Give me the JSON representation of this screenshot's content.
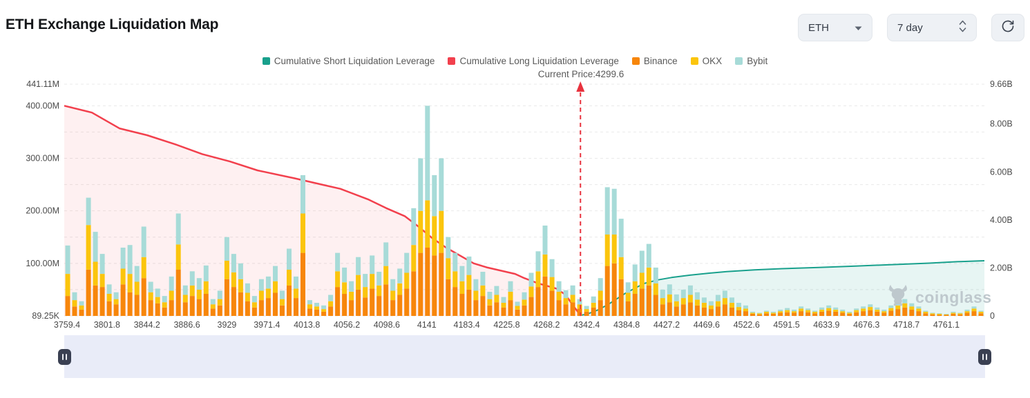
{
  "header": {
    "title": "ETH Exchange Liquidation Map",
    "coin_select": {
      "value": "ETH"
    },
    "period_select": {
      "value": "7 day"
    }
  },
  "legend": {
    "items": [
      {
        "label": "Cumulative Short Liquidation Leverage",
        "color": "#18A08C"
      },
      {
        "label": "Cumulative Long Liquidation Leverage",
        "color": "#F2404D"
      },
      {
        "label": "Binance",
        "color": "#F7860B"
      },
      {
        "label": "OKX",
        "color": "#FBC50D"
      },
      {
        "label": "Bybit",
        "color": "#A7DBD8"
      }
    ]
  },
  "annotation": {
    "current_price_label": "Current Price:4299.6",
    "current_price": 4299.6,
    "price_line_fraction": 0.561,
    "line_color": "#E8323E"
  },
  "watermark": {
    "text": "coinglass"
  },
  "chart_data": {
    "type": "bar+line",
    "title": "ETH Exchange Liquidation Map",
    "grid": true,
    "legend_position": "top",
    "x_tick_labels": [
      "3759.4",
      "3801.8",
      "3844.2",
      "3886.6",
      "3929",
      "3971.4",
      "4013.8",
      "4056.2",
      "4098.6",
      "4141",
      "4183.4",
      "4225.8",
      "4268.2",
      "4342.4",
      "4384.8",
      "4427.2",
      "4469.6",
      "4522.6",
      "4591.5",
      "4633.9",
      "4676.3",
      "4718.7",
      "4761.1"
    ],
    "left_axis": {
      "tick_labels": [
        "441.11M",
        "400.00M",
        "300.00M",
        "200.00M",
        "100.00M",
        "89.25K"
      ],
      "tick_values_m": [
        441.11,
        400,
        300,
        200,
        100,
        0.08925
      ],
      "max_m": 441.11,
      "gridline_step_m": 50
    },
    "right_axis": {
      "tick_labels": [
        "9.66B",
        "8.00B",
        "6.00B",
        "4.00B",
        "2.00B",
        "0"
      ],
      "tick_values_b": [
        9.66,
        8,
        6,
        4,
        2,
        0
      ],
      "max_b": 9.66
    },
    "bar_series": [
      {
        "name": "Binance",
        "color": "#F7860B"
      },
      {
        "name": "OKX",
        "color": "#FBC50D"
      },
      {
        "name": "Bybit",
        "color": "#A7DBD8"
      }
    ],
    "bars_unit": "millions",
    "bars": [
      [
        38,
        42,
        54
      ],
      [
        18,
        12,
        15
      ],
      [
        12,
        8,
        8
      ],
      [
        88,
        85,
        52
      ],
      [
        58,
        45,
        57
      ],
      [
        55,
        25,
        38
      ],
      [
        28,
        14,
        18
      ],
      [
        22,
        10,
        13
      ],
      [
        60,
        30,
        40
      ],
      [
        45,
        35,
        55
      ],
      [
        40,
        25,
        30
      ],
      [
        72,
        40,
        58
      ],
      [
        30,
        15,
        20
      ],
      [
        24,
        12,
        16
      ],
      [
        16,
        10,
        12
      ],
      [
        30,
        18,
        27
      ],
      [
        88,
        48,
        59
      ],
      [
        26,
        14,
        18
      ],
      [
        38,
        20,
        27
      ],
      [
        32,
        18,
        22
      ],
      [
        42,
        24,
        30
      ],
      [
        14,
        8,
        10
      ],
      [
        20,
        12,
        16
      ],
      [
        70,
        35,
        45
      ],
      [
        55,
        28,
        35
      ],
      [
        45,
        25,
        30
      ],
      [
        28,
        16,
        18
      ],
      [
        16,
        10,
        12
      ],
      [
        30,
        18,
        22
      ],
      [
        34,
        18,
        23
      ],
      [
        44,
        22,
        29
      ],
      [
        20,
        12,
        16
      ],
      [
        58,
        30,
        40
      ],
      [
        34,
        18,
        23
      ],
      [
        120,
        75,
        73
      ],
      [
        14,
        8,
        8
      ],
      [
        12,
        6,
        7
      ],
      [
        8,
        5,
        7
      ],
      [
        18,
        10,
        12
      ],
      [
        55,
        30,
        35
      ],
      [
        42,
        22,
        28
      ],
      [
        30,
        16,
        20
      ],
      [
        50,
        28,
        34
      ],
      [
        35,
        20,
        25
      ],
      [
        52,
        28,
        35
      ],
      [
        38,
        20,
        26
      ],
      [
        60,
        35,
        45
      ],
      [
        30,
        18,
        22
      ],
      [
        40,
        22,
        28
      ],
      [
        52,
        30,
        38
      ],
      [
        85,
        50,
        70
      ],
      [
        120,
        80,
        100
      ],
      [
        130,
        90,
        180
      ],
      [
        115,
        75,
        78
      ],
      [
        120,
        80,
        100
      ],
      [
        70,
        40,
        40
      ],
      [
        55,
        30,
        35
      ],
      [
        42,
        24,
        29
      ],
      [
        50,
        28,
        35
      ],
      [
        30,
        18,
        22
      ],
      [
        38,
        20,
        26
      ],
      [
        20,
        12,
        14
      ],
      [
        26,
        14,
        17
      ],
      [
        16,
        9,
        11
      ],
      [
        30,
        16,
        20
      ],
      [
        12,
        7,
        8
      ],
      [
        20,
        11,
        14
      ],
      [
        36,
        20,
        26
      ],
      [
        55,
        30,
        38
      ],
      [
        75,
        42,
        55
      ],
      [
        48,
        26,
        34
      ],
      [
        30,
        16,
        20
      ],
      [
        22,
        12,
        15
      ],
      [
        26,
        14,
        18
      ],
      [
        14,
        8,
        10
      ],
      [
        8,
        5,
        6
      ],
      [
        16,
        9,
        12
      ],
      [
        30,
        18,
        24
      ],
      [
        95,
        60,
        90
      ],
      [
        100,
        55,
        87
      ],
      [
        70,
        42,
        73
      ],
      [
        28,
        16,
        20
      ],
      [
        42,
        24,
        32
      ],
      [
        52,
        30,
        42
      ],
      [
        58,
        34,
        45
      ],
      [
        40,
        22,
        30
      ],
      [
        22,
        12,
        16
      ],
      [
        26,
        15,
        19
      ],
      [
        18,
        10,
        13
      ],
      [
        22,
        12,
        16
      ],
      [
        26,
        14,
        18
      ],
      [
        20,
        11,
        14
      ],
      [
        16,
        9,
        10
      ],
      [
        13,
        7,
        8
      ],
      [
        18,
        10,
        12
      ],
      [
        22,
        12,
        14
      ],
      [
        16,
        9,
        10
      ],
      [
        11,
        6,
        8
      ],
      [
        9,
        5,
        6
      ],
      [
        4,
        2,
        2
      ],
      [
        3,
        2,
        1
      ],
      [
        5,
        3,
        2
      ],
      [
        4,
        2,
        2
      ],
      [
        6,
        3,
        3
      ],
      [
        7,
        4,
        4
      ],
      [
        6,
        3,
        3
      ],
      [
        9,
        5,
        4
      ],
      [
        7,
        4,
        3
      ],
      [
        5,
        3,
        2
      ],
      [
        8,
        4,
        4
      ],
      [
        10,
        5,
        5
      ],
      [
        8,
        4,
        4
      ],
      [
        6,
        3,
        3
      ],
      [
        4,
        2,
        2
      ],
      [
        7,
        4,
        3
      ],
      [
        9,
        5,
        4
      ],
      [
        11,
        6,
        5
      ],
      [
        8,
        4,
        4
      ],
      [
        6,
        3,
        3
      ],
      [
        10,
        5,
        5
      ],
      [
        13,
        7,
        6
      ],
      [
        16,
        8,
        8
      ],
      [
        12,
        6,
        6
      ],
      [
        9,
        5,
        4
      ],
      [
        5,
        3,
        2
      ],
      [
        3,
        2,
        1
      ],
      [
        2,
        2,
        1
      ],
      [
        2,
        1,
        1
      ],
      [
        4,
        2,
        2
      ],
      [
        3,
        2,
        1
      ],
      [
        6,
        3,
        3
      ],
      [
        9,
        5,
        4
      ],
      [
        5,
        3,
        2
      ]
    ],
    "long_line": {
      "name": "Cumulative Long Liquidation Leverage",
      "color": "#F2404D",
      "axis": "left",
      "unit": "millions",
      "fill_opacity": 0.08,
      "points": [
        [
          0,
          400
        ],
        [
          0.03,
          387
        ],
        [
          0.06,
          357
        ],
        [
          0.09,
          344
        ],
        [
          0.12,
          327
        ],
        [
          0.15,
          308
        ],
        [
          0.18,
          294
        ],
        [
          0.21,
          277
        ],
        [
          0.25,
          262
        ],
        [
          0.28,
          250
        ],
        [
          0.3,
          242
        ],
        [
          0.33,
          222
        ],
        [
          0.35,
          205
        ],
        [
          0.37,
          190
        ],
        [
          0.385,
          170
        ],
        [
          0.4,
          148
        ],
        [
          0.415,
          130
        ],
        [
          0.43,
          115
        ],
        [
          0.445,
          100
        ],
        [
          0.46,
          92
        ],
        [
          0.475,
          86
        ],
        [
          0.49,
          80
        ],
        [
          0.5,
          72
        ],
        [
          0.515,
          62
        ],
        [
          0.525,
          57
        ],
        [
          0.535,
          52
        ],
        [
          0.545,
          40
        ],
        [
          0.552,
          22
        ],
        [
          0.558,
          8
        ],
        [
          0.561,
          2
        ]
      ]
    },
    "short_line": {
      "name": "Cumulative Short Liquidation Leverage",
      "color": "#18A08C",
      "axis": "right",
      "unit": "billions",
      "fill_opacity": 0.1,
      "points": [
        [
          0.561,
          0.02
        ],
        [
          0.57,
          0.1
        ],
        [
          0.58,
          0.25
        ],
        [
          0.59,
          0.45
        ],
        [
          0.6,
          0.7
        ],
        [
          0.61,
          0.95
        ],
        [
          0.62,
          1.15
        ],
        [
          0.63,
          1.35
        ],
        [
          0.645,
          1.5
        ],
        [
          0.66,
          1.6
        ],
        [
          0.68,
          1.7
        ],
        [
          0.7,
          1.78
        ],
        [
          0.72,
          1.85
        ],
        [
          0.75,
          1.92
        ],
        [
          0.78,
          1.97
        ],
        [
          0.82,
          2.02
        ],
        [
          0.86,
          2.08
        ],
        [
          0.9,
          2.14
        ],
        [
          0.94,
          2.2
        ],
        [
          0.97,
          2.26
        ],
        [
          1.0,
          2.3
        ]
      ]
    }
  }
}
